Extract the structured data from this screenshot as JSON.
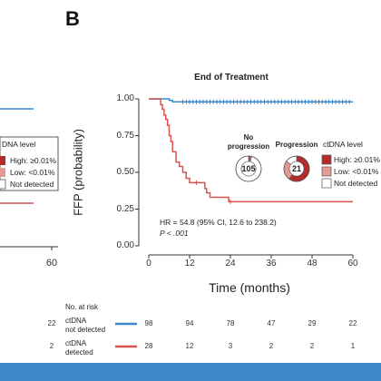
{
  "panel_label": "B",
  "chart_data": {
    "type": "line",
    "title": "End of Treatment",
    "xlabel": "Time (months)",
    "ylabel": "FFP (probability)",
    "xlim": [
      0,
      60
    ],
    "ylim": [
      0,
      1
    ],
    "x_ticks": [
      0,
      12,
      24,
      36,
      48,
      60
    ],
    "y_ticks": [
      0.0,
      0.25,
      0.5,
      0.75,
      1.0
    ],
    "x_tick_labels": [
      "0",
      "12",
      "24",
      "36",
      "48",
      "60"
    ],
    "y_tick_labels": [
      "0.00",
      "0.25",
      "0.50",
      "0.75",
      "1.00"
    ],
    "series": [
      {
        "name": "ctDNA not detected",
        "color": "#3d87c8",
        "points": [
          [
            0,
            1.0
          ],
          [
            5,
            1.0
          ],
          [
            6,
            0.99
          ],
          [
            7,
            0.98
          ],
          [
            8,
            0.98
          ],
          [
            60,
            0.98
          ]
        ],
        "censor_x": [
          10,
          11,
          12,
          13,
          14,
          15,
          16,
          17,
          18,
          19,
          20,
          21,
          22,
          23,
          24,
          25,
          26,
          27,
          28,
          29,
          30,
          31,
          32,
          33,
          34,
          35,
          36,
          37,
          38,
          39,
          40,
          41,
          42,
          43,
          44,
          45,
          46,
          47,
          48,
          49,
          50,
          51,
          52,
          53,
          54,
          55,
          56,
          57,
          58,
          59
        ]
      },
      {
        "name": "ctDNA detected",
        "color": "#d9534f",
        "points": [
          [
            0,
            1.0
          ],
          [
            3,
            1.0
          ],
          [
            3.5,
            0.96
          ],
          [
            4,
            0.93
          ],
          [
            4.5,
            0.89
          ],
          [
            5,
            0.86
          ],
          [
            5.5,
            0.82
          ],
          [
            6,
            0.75
          ],
          [
            6.5,
            0.71
          ],
          [
            7,
            0.64
          ],
          [
            8,
            0.57
          ],
          [
            9,
            0.54
          ],
          [
            10,
            0.5
          ],
          [
            11,
            0.46
          ],
          [
            12,
            0.43
          ],
          [
            16,
            0.43
          ],
          [
            16.5,
            0.39
          ],
          [
            17,
            0.36
          ],
          [
            18,
            0.33
          ],
          [
            23,
            0.33
          ],
          [
            23.5,
            0.3
          ],
          [
            60,
            0.3
          ]
        ],
        "censor_x": [
          14,
          24
        ]
      }
    ],
    "legend_position": "right",
    "annotations": [
      "HR = 54.8 (95% CI, 12.6 to 238.2)",
      "P < .001"
    ]
  },
  "donuts": {
    "no_progression": {
      "label_line1": "No",
      "label_line2": "progression",
      "count": "105",
      "fractions": {
        "high": 0.02,
        "low": 0.02,
        "not_detected": 0.96
      }
    },
    "progression": {
      "label": "Progression",
      "count": "21",
      "fractions": {
        "high": 0.6,
        "low": 0.25,
        "not_detected": 0.15
      }
    }
  },
  "legend": {
    "title": "ctDNA level",
    "items": [
      {
        "label": "High: ≥0.01%",
        "color": "#b52a2a"
      },
      {
        "label": "Low: <0.01%",
        "color": "#e29a94"
      },
      {
        "label": "Not detected",
        "color": "#ffffff"
      }
    ]
  },
  "risk_table": {
    "header": "No. at risk",
    "rows": [
      {
        "label_line1": "ctDNA",
        "label_line2": "not detected",
        "color": "#3d87c8",
        "values": [
          "98",
          "94",
          "78",
          "47",
          "29",
          "22"
        ]
      },
      {
        "label_line1": "ctDNA",
        "label_line2": "detected",
        "color": "#d9534f",
        "values": [
          "28",
          "12",
          "3",
          "2",
          "2",
          "1"
        ]
      }
    ]
  },
  "left_panel": {
    "legend_title_fragment": "DNA level",
    "legend_items": [
      "High: ≥0.01%",
      "Low: <0.01%",
      "Not detected"
    ],
    "x_tick": "60",
    "risk_values": [
      "22",
      "2"
    ]
  }
}
